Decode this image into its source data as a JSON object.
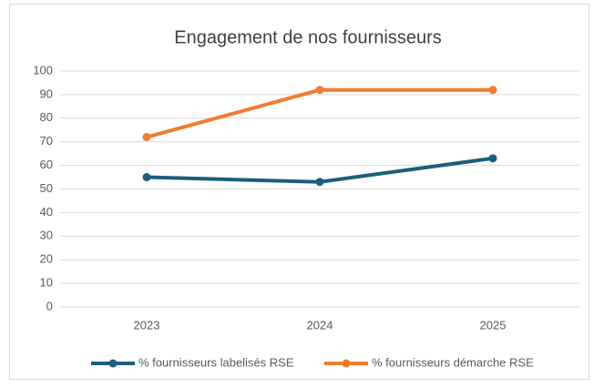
{
  "chart_data": {
    "type": "line",
    "title": "Engagement de nos fournisseurs",
    "categories": [
      "2023",
      "2024",
      "2025"
    ],
    "series": [
      {
        "name": "% fournisseurs labelisés RSE",
        "color": "#1b5e7d",
        "values": [
          55,
          53,
          63
        ]
      },
      {
        "name": "% fournisseurs démarche RSE",
        "color": "#f07c2e",
        "values": [
          72,
          92,
          92
        ]
      }
    ],
    "ylim": [
      0,
      100
    ],
    "yticks": [
      0,
      10,
      20,
      30,
      40,
      50,
      60,
      70,
      80,
      90,
      100
    ],
    "grid": true,
    "legend": "bottom"
  }
}
